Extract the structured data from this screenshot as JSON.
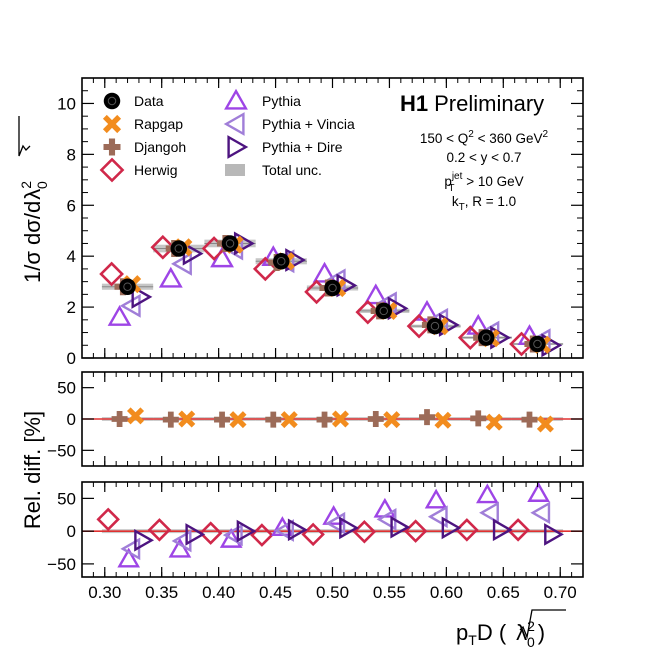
{
  "colors": {
    "data": "#000000",
    "rapgap": "#f28c1e",
    "djangoh": "#9c6b58",
    "herwig": "#d0284a",
    "pythia": "#9e45e6",
    "vincia": "#a07ed8",
    "dire": "#4d1480",
    "total_unc": "#b8b8b8",
    "reference_line": "#e03030"
  },
  "chart_data": {
    "type": "scatter",
    "title": "",
    "x": [
      0.32,
      0.365,
      0.41,
      0.455,
      0.5,
      0.545,
      0.59,
      0.635,
      0.68
    ],
    "x_bin_halfwidth": 0.0225,
    "xlim": [
      0.28,
      0.72
    ],
    "xticks": [
      "0.30",
      "0.35",
      "0.40",
      "0.45",
      "0.50",
      "0.55",
      "0.60",
      "0.65",
      "0.70"
    ],
    "xlabel": {
      "base": "p",
      "sub1": "T",
      "rest": "D (",
      "lambda": "λ",
      "lsup": "2",
      "lsub": "0",
      "close": ")"
    },
    "top": {
      "ylabel": {
        "prefix": "1/σ dσ/d",
        "lambda": "λ",
        "lsup": "2",
        "lsub": "0"
      },
      "ylim": [
        0,
        11
      ],
      "yticks": [
        "0",
        "2",
        "4",
        "6",
        "8",
        "10"
      ],
      "series": [
        {
          "name": "Data",
          "values": [
            2.8,
            4.3,
            4.5,
            3.8,
            2.75,
            1.85,
            1.25,
            0.8,
            0.55
          ]
        },
        {
          "name": "Rapgap",
          "values": [
            2.9,
            4.35,
            4.45,
            3.8,
            2.75,
            1.85,
            1.25,
            0.78,
            0.52
          ]
        },
        {
          "name": "Djangoh",
          "values": [
            2.8,
            4.3,
            4.5,
            3.75,
            2.75,
            1.85,
            1.3,
            0.8,
            0.55
          ]
        },
        {
          "name": "Herwig",
          "values": [
            3.3,
            4.35,
            4.3,
            3.5,
            2.6,
            1.8,
            1.25,
            0.8,
            0.55
          ]
        },
        {
          "name": "Pythia",
          "values": [
            1.6,
            3.1,
            3.9,
            3.95,
            3.3,
            2.45,
            1.8,
            1.25,
            0.85
          ]
        },
        {
          "name": "Pythia + Vincia",
          "values": [
            2.05,
            3.7,
            4.3,
            3.8,
            3.05,
            2.15,
            1.5,
            1.0,
            0.7
          ]
        },
        {
          "name": "Pythia + Dire",
          "values": [
            2.4,
            4.1,
            4.5,
            3.85,
            2.85,
            1.95,
            1.3,
            0.8,
            0.5
          ]
        }
      ],
      "total_unc": [
        0.12,
        0.15,
        0.15,
        0.12,
        0.1,
        0.08,
        0.06,
        0.05,
        0.04
      ]
    },
    "middle": {
      "ylabel": "Rel. diff. [%]",
      "ylim": [
        -75,
        75
      ],
      "yticks": [
        "−50",
        "0",
        "50"
      ],
      "series": [
        {
          "name": "Rapgap",
          "values": [
            5,
            0,
            -1,
            -1,
            0,
            -1,
            -2,
            -5,
            -8
          ]
        },
        {
          "name": "Djangoh",
          "values": [
            0,
            -1,
            -1,
            -1,
            -1,
            0,
            3,
            1,
            -1
          ]
        }
      ],
      "total_unc": [
        3,
        3,
        3,
        3,
        3,
        3,
        3,
        3,
        3
      ]
    },
    "bottom": {
      "ylim": [
        -70,
        75
      ],
      "yticks": [
        "−50",
        "0",
        "50"
      ],
      "series": [
        {
          "name": "Herwig",
          "values": [
            18,
            2,
            -3,
            -6,
            -5,
            -1,
            0,
            2,
            2
          ]
        },
        {
          "name": "Pythia",
          "values": [
            -43,
            -28,
            -13,
            5,
            22,
            33,
            47,
            55,
            57
          ]
        },
        {
          "name": "Pythia + Vincia",
          "values": [
            -27,
            -15,
            -6,
            1,
            12,
            18,
            22,
            28,
            28
          ]
        },
        {
          "name": "Pythia + Dire",
          "values": [
            -14,
            -5,
            0,
            2,
            5,
            6,
            5,
            2,
            -5
          ]
        }
      ],
      "total_unc": [
        3,
        3,
        3,
        3,
        3,
        3,
        3,
        3,
        3
      ]
    },
    "legend": {
      "placement": "top-left",
      "col1": [
        "Data",
        "Rapgap",
        "Djangoh",
        "Herwig"
      ],
      "col2": [
        "Pythia",
        "Pythia + Vincia",
        "Pythia + Dire",
        "Total unc."
      ]
    },
    "annotations": {
      "experiment_bold": "H1",
      "experiment_rest": "Preliminary",
      "q2_range": {
        "pre": "150 < Q",
        "sup": "2",
        "post": " < 360 GeV",
        "sup2": "2"
      },
      "y_range": "0.2 < y < 0.7",
      "jet_pt": {
        "p": "p",
        "sup": "jet",
        "sub": "T",
        "rest": " > 10 GeV"
      },
      "algo": {
        "k": "k",
        "sub": "T",
        "rest": ", R = 1.0"
      }
    }
  }
}
